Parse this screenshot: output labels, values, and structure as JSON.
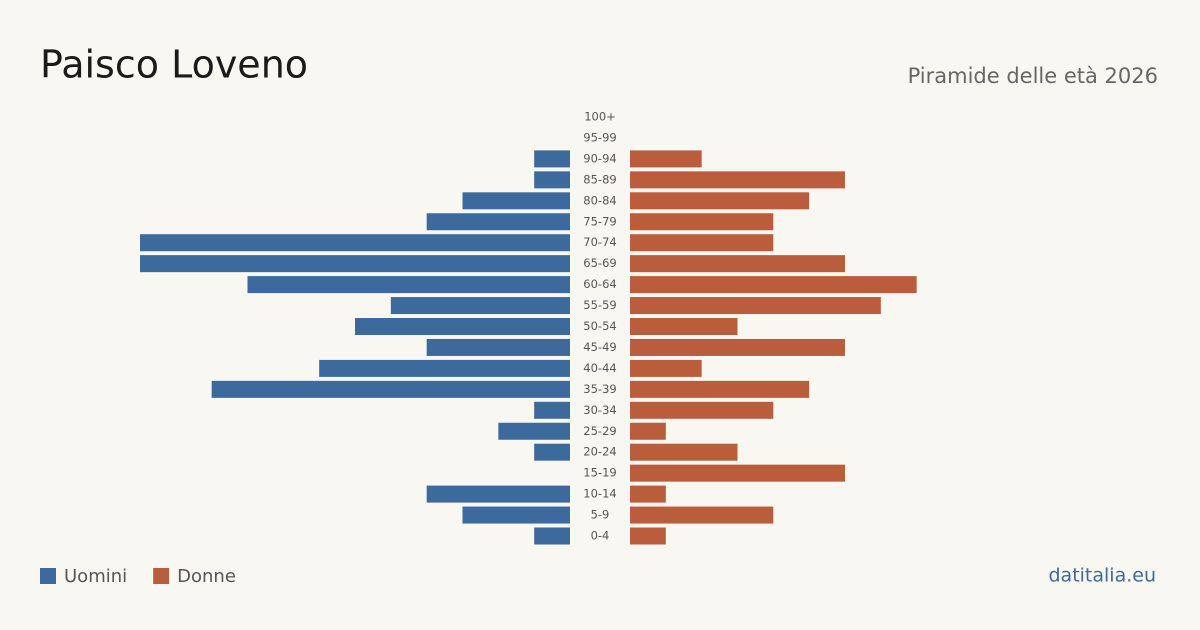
{
  "chart_data": {
    "type": "pyramid",
    "title": "Paisco Loveno",
    "subtitle": "Piramide delle età 2026",
    "source": "datitalia.eu",
    "categories": [
      "100+",
      "95-99",
      "90-94",
      "85-89",
      "80-84",
      "75-79",
      "70-74",
      "65-69",
      "60-64",
      "55-59",
      "50-54",
      "45-49",
      "40-44",
      "35-39",
      "30-34",
      "25-29",
      "20-24",
      "15-19",
      "10-14",
      "5-9",
      "0-4"
    ],
    "series": [
      {
        "name": "Uomini",
        "color": "#3d6a9c",
        "values": [
          0,
          0,
          1,
          1,
          3,
          4,
          12,
          12,
          9,
          5,
          6,
          4,
          7,
          10,
          1,
          2,
          1,
          0,
          4,
          3,
          1
        ]
      },
      {
        "name": "Donne",
        "color": "#b95d3c",
        "values": [
          0,
          0,
          2,
          6,
          5,
          4,
          4,
          6,
          8,
          7,
          3,
          6,
          2,
          5,
          4,
          1,
          3,
          6,
          1,
          4,
          1
        ]
      }
    ]
  }
}
